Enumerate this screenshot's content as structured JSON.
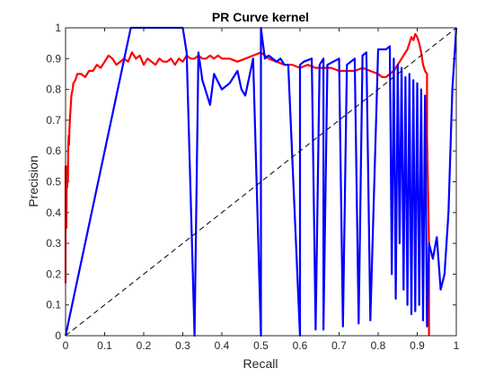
{
  "chart_data": {
    "type": "line",
    "title": "PR Curve kernel",
    "xlabel": "Recall",
    "ylabel": "Precision",
    "xlim": [
      0,
      1
    ],
    "ylim": [
      0,
      1
    ],
    "xticks": [
      "0",
      "0.1",
      "0.2",
      "0.3",
      "0.4",
      "0.5",
      "0.6",
      "0.7",
      "0.8",
      "0.9",
      "1"
    ],
    "yticks": [
      "0",
      "0.1",
      "0.2",
      "0.3",
      "0.4",
      "0.5",
      "0.6",
      "0.7",
      "0.8",
      "0.9",
      "1"
    ],
    "grid": false,
    "legend": false,
    "series": [
      {
        "color": "#ff0000",
        "style": "solid",
        "x": [
          0.0,
          0.0,
          0.002,
          0.003,
          0.004,
          0.005,
          0.006,
          0.007,
          0.008,
          0.009,
          0.01,
          0.012,
          0.015,
          0.018,
          0.02,
          0.025,
          0.03,
          0.04,
          0.05,
          0.06,
          0.07,
          0.08,
          0.09,
          0.1,
          0.11,
          0.12,
          0.13,
          0.14,
          0.15,
          0.16,
          0.17,
          0.18,
          0.19,
          0.2,
          0.21,
          0.22,
          0.23,
          0.24,
          0.25,
          0.26,
          0.27,
          0.28,
          0.29,
          0.3,
          0.31,
          0.32,
          0.33,
          0.34,
          0.35,
          0.36,
          0.37,
          0.38,
          0.39,
          0.4,
          0.42,
          0.44,
          0.46,
          0.48,
          0.5,
          0.52,
          0.54,
          0.56,
          0.58,
          0.6,
          0.62,
          0.64,
          0.66,
          0.68,
          0.7,
          0.72,
          0.74,
          0.76,
          0.78,
          0.8,
          0.81,
          0.82,
          0.83,
          0.84,
          0.85,
          0.86,
          0.87,
          0.875,
          0.88,
          0.885,
          0.89,
          0.895,
          0.9,
          0.905,
          0.91,
          0.915,
          0.92,
          0.925,
          0.925,
          0.93,
          0.93
        ],
        "y": [
          0.17,
          0.55,
          0.35,
          0.55,
          0.48,
          0.55,
          0.5,
          0.62,
          0.65,
          0.62,
          0.67,
          0.72,
          0.78,
          0.8,
          0.82,
          0.83,
          0.85,
          0.85,
          0.84,
          0.86,
          0.86,
          0.88,
          0.87,
          0.89,
          0.91,
          0.9,
          0.88,
          0.89,
          0.9,
          0.89,
          0.92,
          0.9,
          0.91,
          0.88,
          0.9,
          0.89,
          0.88,
          0.9,
          0.89,
          0.89,
          0.9,
          0.88,
          0.9,
          0.89,
          0.91,
          0.9,
          0.9,
          0.91,
          0.9,
          0.9,
          0.91,
          0.9,
          0.91,
          0.9,
          0.9,
          0.89,
          0.9,
          0.91,
          0.92,
          0.9,
          0.89,
          0.88,
          0.88,
          0.87,
          0.88,
          0.87,
          0.87,
          0.87,
          0.86,
          0.86,
          0.86,
          0.87,
          0.86,
          0.85,
          0.84,
          0.84,
          0.85,
          0.86,
          0.88,
          0.9,
          0.92,
          0.93,
          0.95,
          0.97,
          0.96,
          0.98,
          0.97,
          0.95,
          0.92,
          0.88,
          0.86,
          0.85,
          0.65,
          0.3,
          0.0
        ]
      },
      {
        "color": "#0000ff",
        "style": "solid",
        "x": [
          0.0,
          0.167,
          0.2,
          0.25,
          0.3,
          0.31,
          0.33,
          0.34,
          0.35,
          0.37,
          0.38,
          0.4,
          0.42,
          0.44,
          0.45,
          0.46,
          0.48,
          0.5,
          0.5,
          0.51,
          0.52,
          0.53,
          0.54,
          0.55,
          0.56,
          0.57,
          0.6,
          0.6,
          0.61,
          0.63,
          0.64,
          0.65,
          0.66,
          0.66,
          0.67,
          0.7,
          0.71,
          0.72,
          0.74,
          0.75,
          0.76,
          0.77,
          0.78,
          0.8,
          0.82,
          0.83,
          0.835,
          0.84,
          0.845,
          0.85,
          0.855,
          0.86,
          0.865,
          0.87,
          0.875,
          0.88,
          0.885,
          0.89,
          0.895,
          0.9,
          0.905,
          0.91,
          0.915,
          0.92,
          0.925,
          0.93,
          0.94,
          0.95,
          0.96,
          0.97,
          0.98,
          0.99,
          1.0
        ],
        "y": [
          0.0,
          1.0,
          1.0,
          1.0,
          1.0,
          0.92,
          0.0,
          0.92,
          0.83,
          0.75,
          0.85,
          0.8,
          0.82,
          0.86,
          0.8,
          0.78,
          0.9,
          0.0,
          1.0,
          0.9,
          0.91,
          0.9,
          0.89,
          0.9,
          0.88,
          0.88,
          0.0,
          0.88,
          0.89,
          0.9,
          0.02,
          0.88,
          0.9,
          0.02,
          0.88,
          0.9,
          0.03,
          0.88,
          0.9,
          0.04,
          0.91,
          0.92,
          0.05,
          0.93,
          0.93,
          0.94,
          0.2,
          0.9,
          0.12,
          0.88,
          0.3,
          0.87,
          0.15,
          0.84,
          0.1,
          0.85,
          0.07,
          0.83,
          0.08,
          0.82,
          0.1,
          0.8,
          0.05,
          0.78,
          0.03,
          0.3,
          0.25,
          0.32,
          0.15,
          0.2,
          0.4,
          0.8,
          1.0
        ]
      },
      {
        "color": "#000000",
        "style": "dashed",
        "x": [
          0,
          1
        ],
        "y": [
          0,
          1
        ]
      }
    ]
  }
}
